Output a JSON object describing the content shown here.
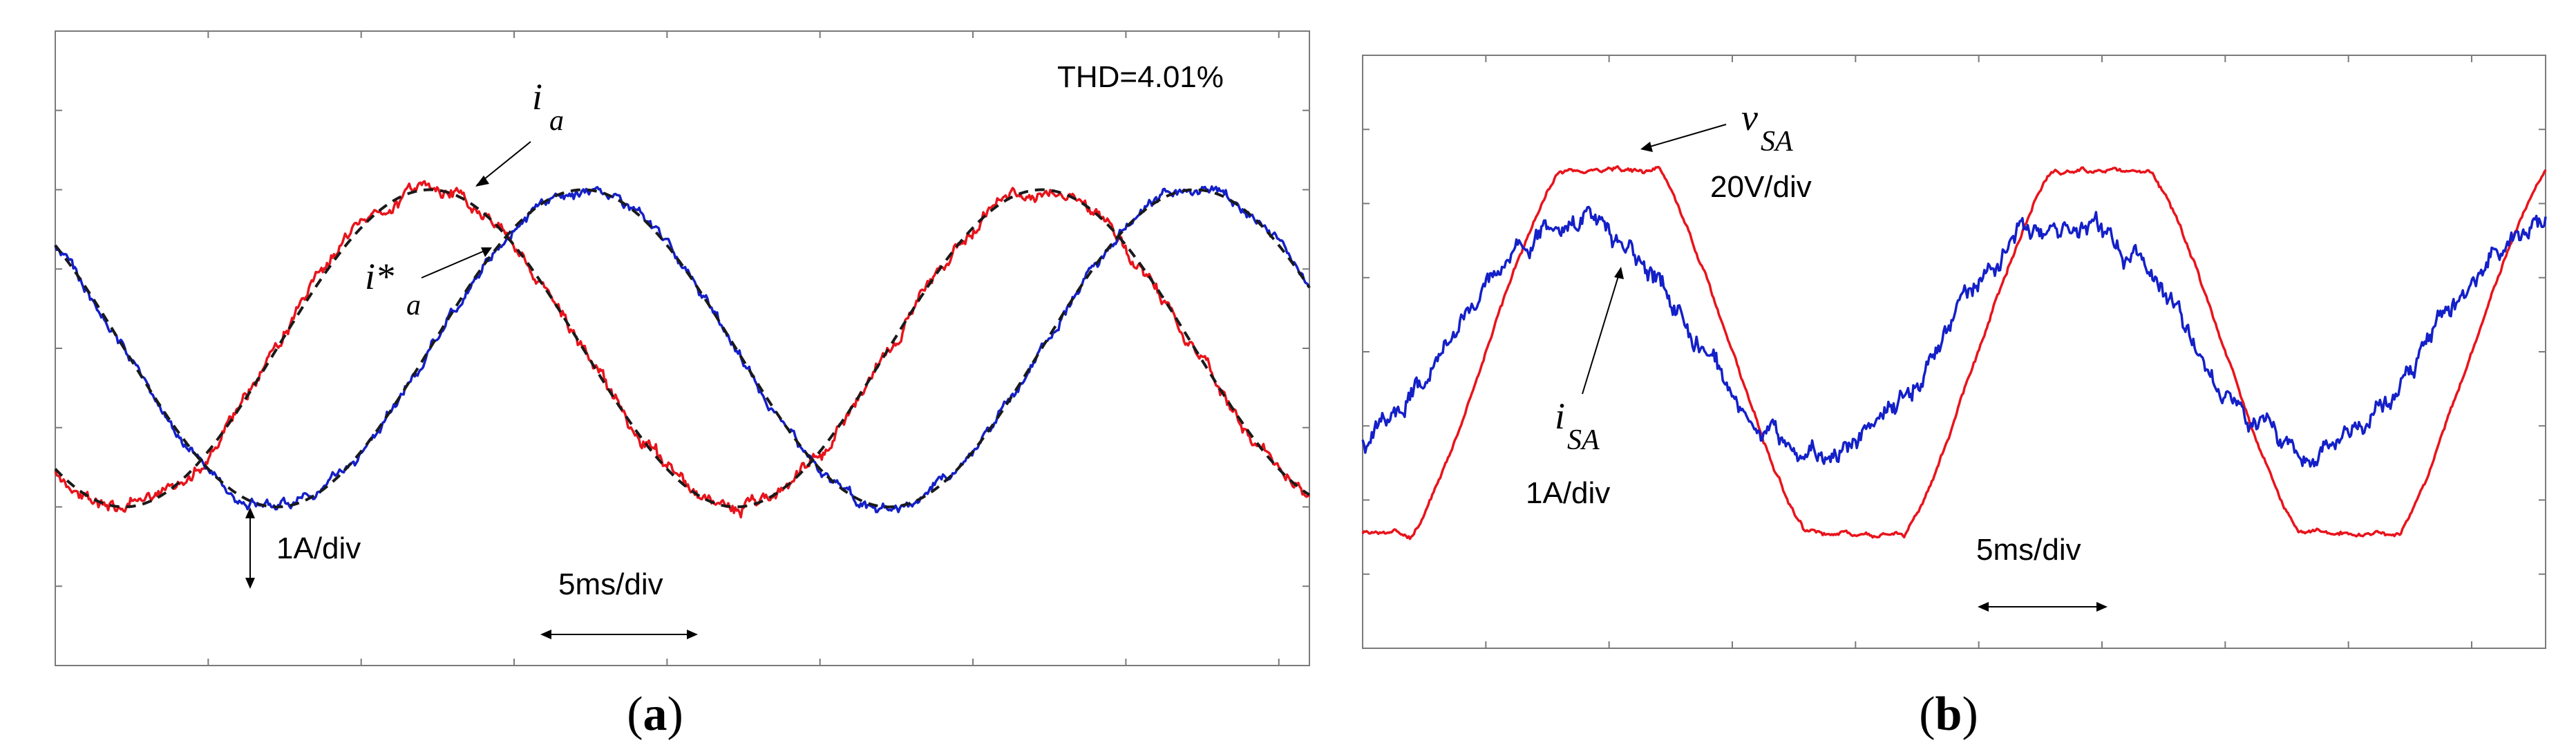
{
  "figure": {
    "panel_a_caption_open": "(",
    "panel_a_caption_letter": "a",
    "panel_a_caption_close": ")",
    "panel_b_caption_open": "(",
    "panel_b_caption_letter": "b",
    "panel_b_caption_close": ")"
  },
  "colors": {
    "red": "#e8141c",
    "blue": "#1420c8",
    "dashed": "#1a1a1a",
    "frame": "#7a7a7a"
  },
  "chart_data": [
    {
      "type": "line",
      "panel": "a",
      "title": "",
      "annotation_thd": "THD=4.01%",
      "label_ia_base": "i",
      "label_ia_sub": "a",
      "label_ia_ref_base": "i*",
      "label_ia_ref_sub": "a",
      "label_current_scale": "1A/div",
      "label_time_scale": "5ms/div",
      "grid": false,
      "xlim_div": [
        0,
        8.2
      ],
      "ylim_div": [
        0,
        8
      ],
      "series": [
        {
          "name": "i_a (red)",
          "color": "red",
          "kind": "sine",
          "amplitude_div": 2.0,
          "offset_div": 4.0,
          "period_div": 4.0,
          "peak_at_div": 2.45,
          "ripple": 0.1
        },
        {
          "name": "blue phase current",
          "color": "blue",
          "kind": "sine",
          "amplitude_div": 2.0,
          "offset_div": 4.0,
          "period_div": 4.0,
          "peak_at_div": 3.45,
          "ripple": 0.08
        },
        {
          "name": "i*_a reference (dashed)",
          "color": "dashed",
          "kind": "sine",
          "amplitude_div": 2.0,
          "offset_div": 4.0,
          "period_div": 4.0,
          "peak_at_div": 2.45,
          "ripple": 0.0
        },
        {
          "name": "reference (dashed)",
          "color": "dashed",
          "kind": "sine",
          "amplitude_div": 2.0,
          "offset_div": 4.0,
          "period_div": 4.0,
          "peak_at_div": 3.45,
          "ripple": 0.0
        }
      ]
    },
    {
      "type": "line",
      "panel": "b",
      "title": "",
      "label_v_base": "v",
      "label_v_sub": "SA",
      "label_v_scale": "20V/div",
      "label_i_base": "i",
      "label_i_sub": "SA",
      "label_i_scale": "1A/div",
      "label_time_scale": "5ms/div",
      "grid": false,
      "xlim_div": [
        0,
        9.6
      ],
      "ylim_div": [
        0,
        8
      ],
      "series": [
        {
          "name": "v_SA (red)",
          "color": "red",
          "kind": "trapezoid",
          "amplitude_div": 2.45,
          "offset_div": 4.0,
          "period_div": 4.0,
          "peak_at_div": 2.0,
          "ripple": 0.04
        },
        {
          "name": "i_SA (blue)",
          "color": "blue",
          "kind": "sine",
          "amplitude_div": 1.6,
          "offset_div": 4.2,
          "period_div": 4.0,
          "peak_at_div": 1.7,
          "ripple": 0.18
        }
      ]
    }
  ]
}
